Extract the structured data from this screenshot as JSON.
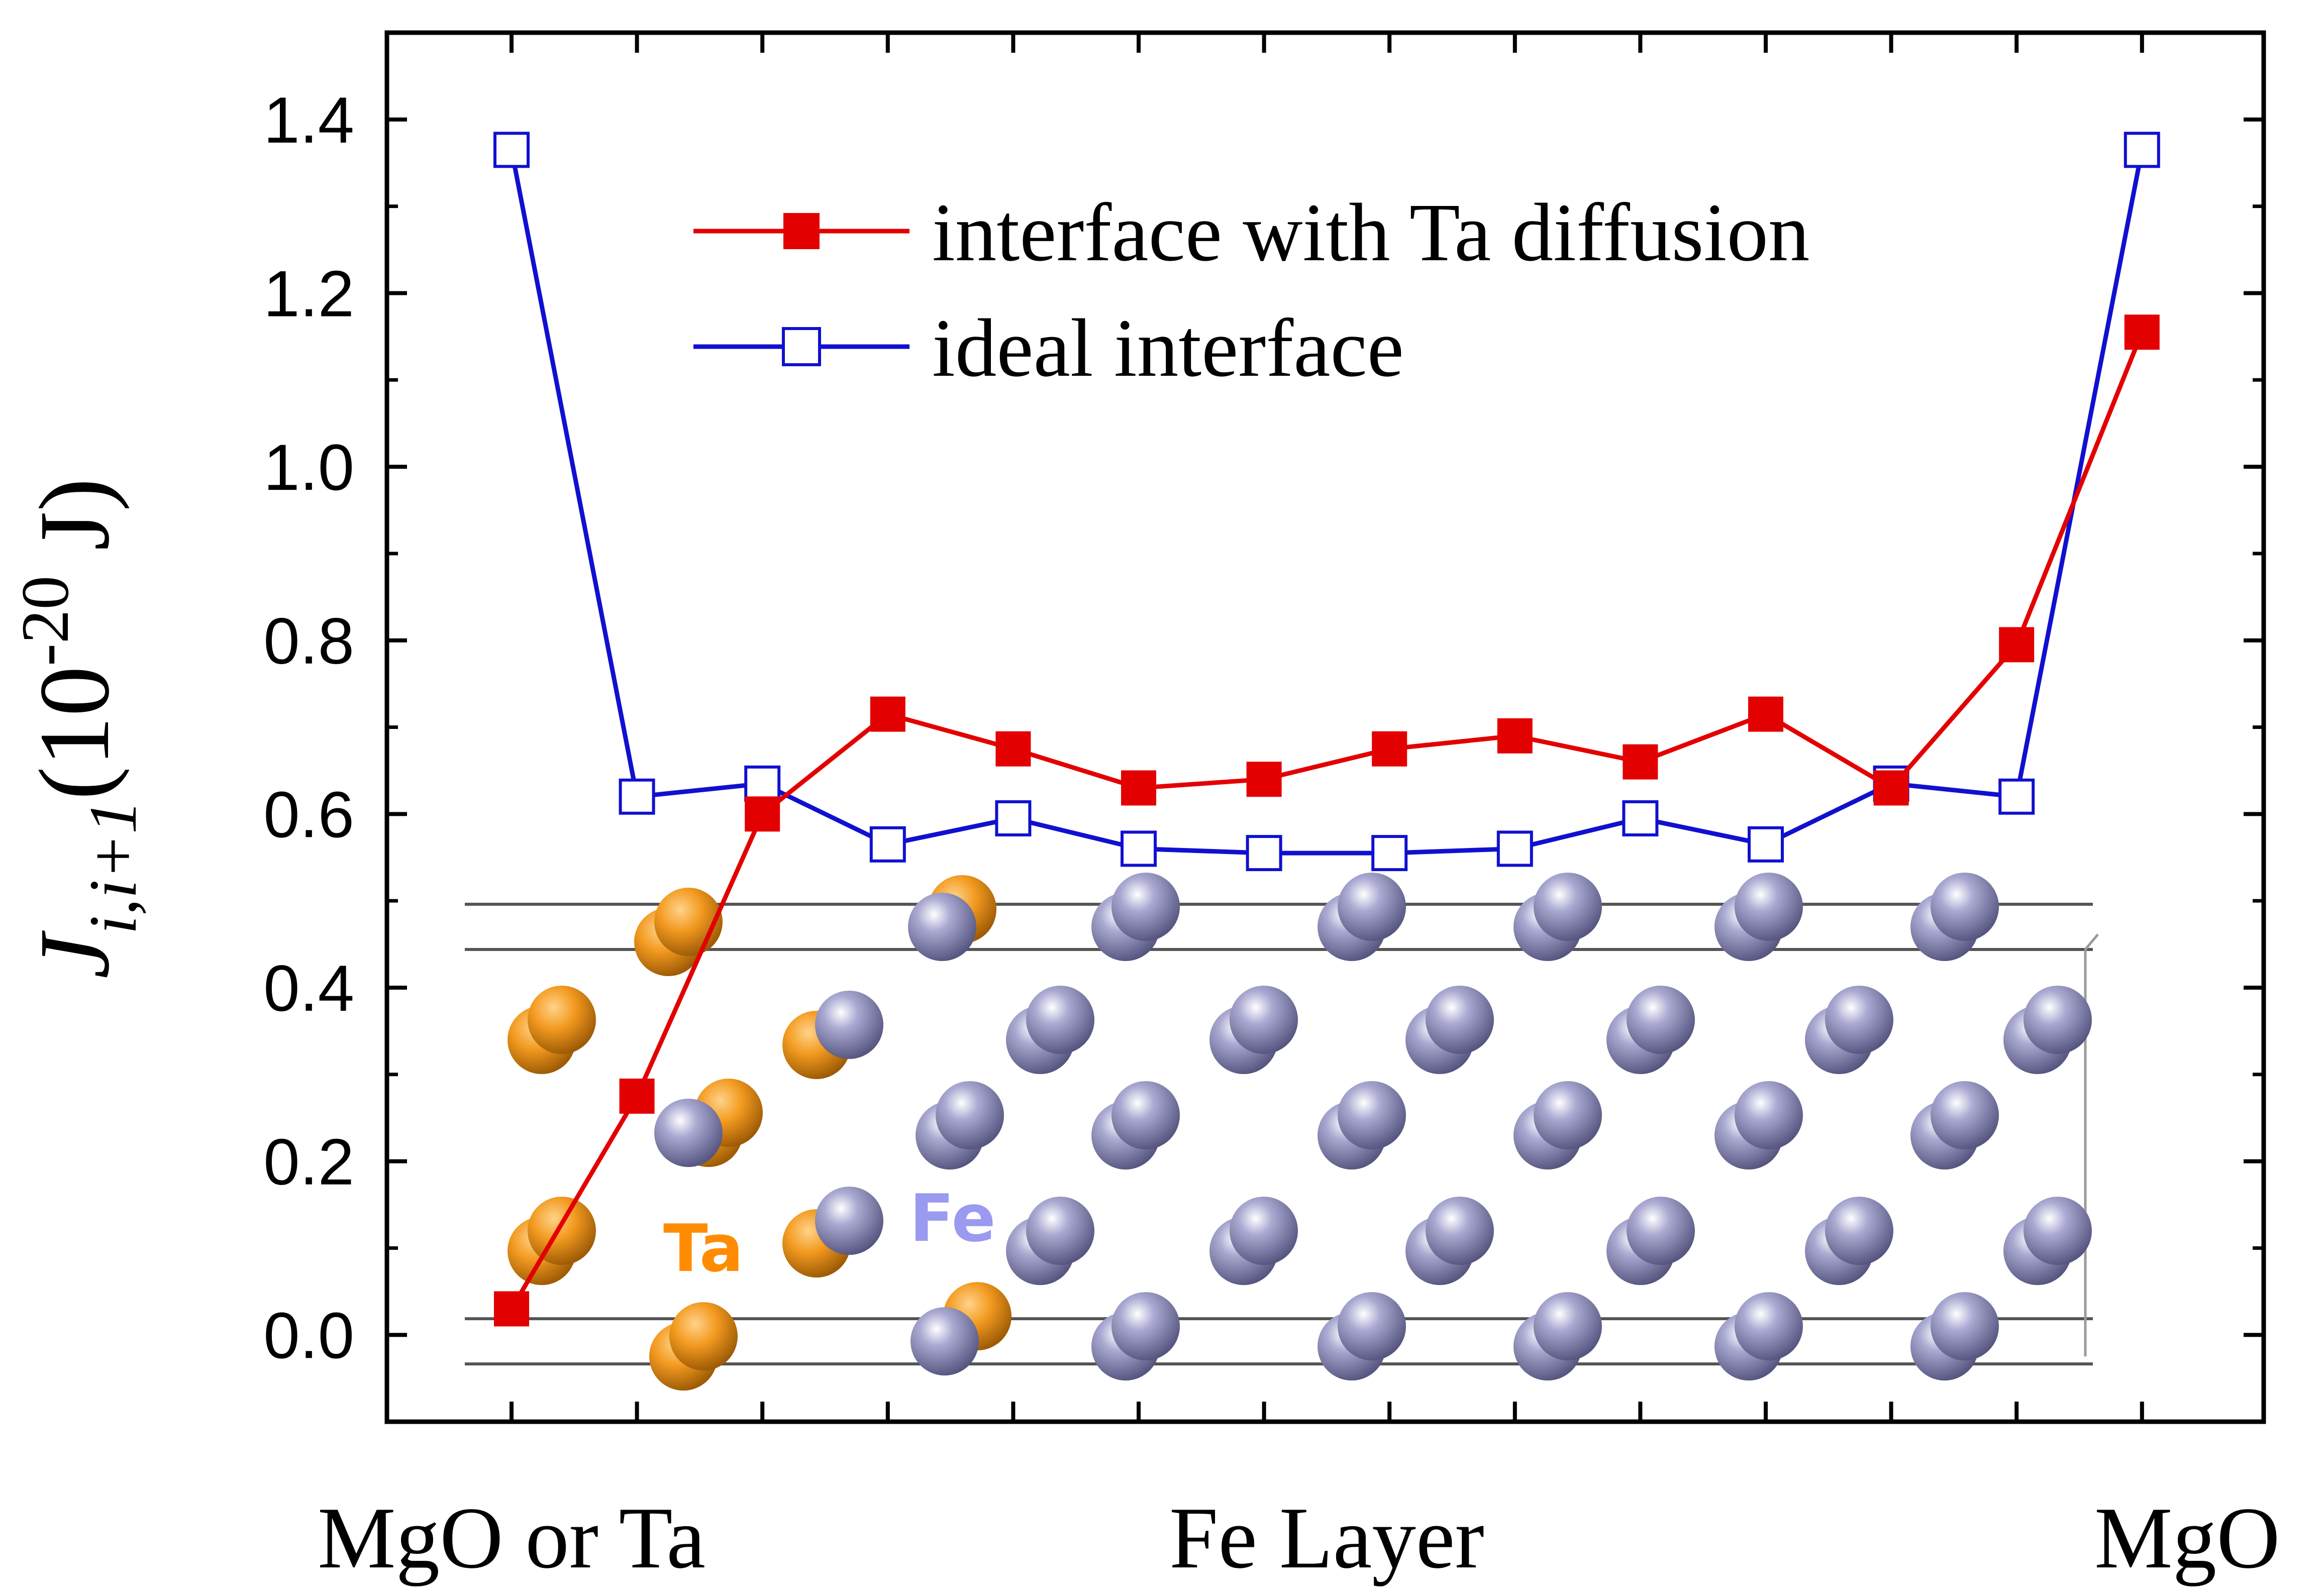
{
  "chart_data": {
    "type": "line",
    "title": "",
    "ylabel": {
      "symbol": "J",
      "subscript": "i,i+1",
      "unit_open": "(10",
      "exponent": "-20",
      "unit_close": " J)"
    },
    "xlabel": "",
    "x_category_labels": [
      "MgO or Ta",
      "Fe Layer",
      "MgO"
    ],
    "ylim": [
      -0.1,
      1.5
    ],
    "yticks": [
      "0.0",
      "0.2",
      "0.4",
      "0.6",
      "0.8",
      "1.0",
      "1.2",
      "1.4"
    ],
    "ytick_values": [
      0.0,
      0.2,
      0.4,
      0.6,
      0.8,
      1.0,
      1.2,
      1.4
    ],
    "x_count": 14,
    "series": [
      {
        "name": "interface with Ta diffusion",
        "color": "#e30000",
        "marker": "filled-square",
        "values": [
          0.03,
          0.275,
          0.6,
          0.715,
          0.675,
          0.63,
          0.64,
          0.675,
          0.69,
          0.66,
          0.715,
          0.63,
          0.795,
          1.155
        ]
      },
      {
        "name": "ideal interface",
        "color": "#1010d0",
        "marker": "open-square",
        "values": [
          1.365,
          0.62,
          0.635,
          0.565,
          0.595,
          0.56,
          0.555,
          0.555,
          0.56,
          0.595,
          0.565,
          0.635,
          0.62,
          1.365
        ]
      }
    ],
    "legend_position": "top-center",
    "inset_labels": [
      "Ta",
      "Fe"
    ],
    "colors": {
      "ta_atom": "#e8901c",
      "fe_atom": "#8f8fc0",
      "ta_label": "#ff8c00",
      "fe_label": "#9a9af0"
    }
  }
}
